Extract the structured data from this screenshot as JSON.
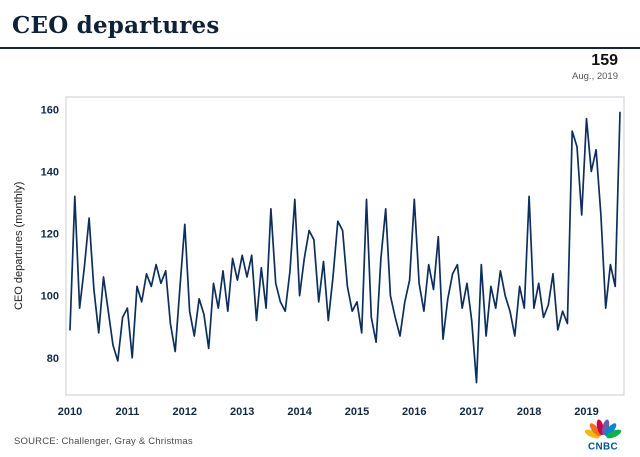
{
  "header": {
    "title": "CEO departures"
  },
  "annotation": {
    "value": "159",
    "label": "Aug., 2019"
  },
  "footer": {
    "source": "SOURCE: Challenger, Gray & Christmas",
    "logo_text": "CNBC"
  },
  "chart_data": {
    "type": "line",
    "title": "CEO departures",
    "ylabel": "CEO departures (monthly)",
    "xlabel": "",
    "frequency": "monthly",
    "x_start": "2010-01",
    "x_end": "2019-08",
    "x_tick_labels": [
      "2010",
      "2011",
      "2012",
      "2013",
      "2014",
      "2015",
      "2016",
      "2017",
      "2018",
      "2019"
    ],
    "yticks": [
      80,
      100,
      120,
      140,
      160
    ],
    "ylim": [
      68,
      164
    ],
    "grid": false,
    "legend": false,
    "line_color": "#0d2f5e",
    "values": [
      89,
      132,
      96,
      109,
      125,
      102,
      88,
      106,
      95,
      84,
      79,
      93,
      96,
      80,
      103,
      98,
      107,
      103,
      110,
      104,
      108,
      91,
      82,
      103,
      123,
      95,
      87,
      99,
      94,
      83,
      104,
      96,
      108,
      95,
      112,
      105,
      113,
      106,
      113,
      92,
      109,
      96,
      128,
      104,
      98,
      95,
      108,
      131,
      100,
      112,
      121,
      118,
      98,
      111,
      92,
      106,
      124,
      121,
      103,
      95,
      98,
      88,
      131,
      93,
      85,
      112,
      128,
      100,
      93,
      87,
      98,
      105,
      131,
      104,
      95,
      110,
      102,
      119,
      86,
      99,
      107,
      110,
      96,
      104,
      92,
      72,
      110,
      87,
      103,
      96,
      108,
      100,
      95,
      87,
      103,
      96,
      132,
      96,
      104,
      93,
      97,
      107,
      89,
      95,
      91,
      153,
      148,
      126,
      157,
      140,
      147,
      126,
      96,
      110,
      103,
      159
    ],
    "highlight_last": {
      "value": 159,
      "label": "Aug., 2019"
    }
  }
}
